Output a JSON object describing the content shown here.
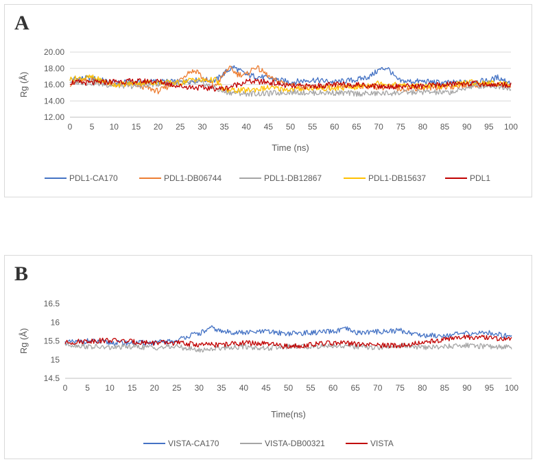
{
  "chart_data": [
    {
      "panel_label": "A",
      "type": "line",
      "xlabel": "Time (ns)",
      "ylabel": "Rg (Å)",
      "xlim": [
        0,
        100
      ],
      "ylim": [
        12,
        20
      ],
      "xticks": [
        "0",
        "5",
        "10",
        "15",
        "20",
        "25",
        "30",
        "35",
        "40",
        "45",
        "50",
        "55",
        "60",
        "65",
        "70",
        "75",
        "80",
        "85",
        "90",
        "95",
        "100"
      ],
      "yticks": [
        "12.00",
        "14.00",
        "16.00",
        "18.00",
        "20.00"
      ],
      "grid": "horizontal",
      "legend_position": "bottom",
      "series": [
        {
          "name": "PDL1-CA170",
          "color": "#4472c4",
          "x": [
            0,
            5,
            10,
            15,
            20,
            25,
            30,
            33,
            35,
            37,
            40,
            45,
            50,
            55,
            60,
            65,
            68,
            70,
            72,
            74,
            75,
            80,
            85,
            90,
            95,
            97,
            100
          ],
          "y": [
            16.7,
            16.8,
            16.2,
            16.3,
            16.4,
            16.3,
            16.6,
            16.5,
            17.4,
            18.2,
            17.2,
            16.8,
            16.3,
            16.6,
            16.3,
            16.6,
            17.0,
            17.8,
            18.1,
            16.7,
            16.4,
            16.4,
            16.2,
            16.3,
            16.5,
            16.9,
            16.2
          ]
        },
        {
          "name": "PDL1-DB06744",
          "color": "#ed7d31",
          "x": [
            0,
            5,
            10,
            15,
            20,
            24,
            27,
            29,
            30,
            33,
            36,
            38,
            40,
            42,
            44,
            46,
            48,
            50,
            55,
            60,
            65,
            70,
            75,
            80,
            85,
            90,
            95,
            100
          ],
          "y": [
            16.1,
            16.6,
            16.0,
            16.0,
            15.2,
            16.2,
            17.6,
            17.7,
            16.8,
            15.8,
            18.1,
            17.3,
            17.2,
            18.2,
            17.5,
            16.6,
            16.3,
            16.0,
            15.6,
            15.8,
            15.9,
            15.7,
            15.5,
            15.6,
            15.7,
            15.9,
            16.0,
            15.9
          ]
        },
        {
          "name": "PDL1-DB12867",
          "color": "#a5a5a5",
          "x": [
            0,
            5,
            10,
            15,
            20,
            25,
            30,
            35,
            40,
            45,
            50,
            55,
            60,
            65,
            70,
            75,
            80,
            85,
            88,
            90,
            95,
            100
          ],
          "y": [
            16.4,
            16.2,
            15.9,
            15.8,
            16.1,
            16.3,
            16.2,
            15.1,
            14.9,
            14.9,
            15.1,
            15.0,
            15.0,
            14.9,
            14.9,
            15.0,
            15.1,
            15.0,
            15.2,
            15.7,
            15.9,
            15.6
          ]
        },
        {
          "name": "PDL1-DB15637",
          "color": "#ffc000",
          "x": [
            0,
            5,
            10,
            15,
            20,
            25,
            28,
            30,
            33,
            35,
            40,
            45,
            50,
            55,
            60,
            65,
            70,
            75,
            80,
            85,
            90,
            95,
            100
          ],
          "y": [
            16.7,
            16.9,
            16.0,
            16.2,
            16.3,
            16.2,
            16.7,
            16.5,
            16.6,
            15.3,
            15.3,
            15.6,
            15.4,
            15.6,
            15.5,
            15.7,
            16.2,
            15.9,
            15.8,
            15.8,
            16.3,
            16.2,
            16.1
          ]
        },
        {
          "name": "PDL1",
          "color": "#c00000",
          "x": [
            0,
            5,
            10,
            15,
            20,
            25,
            30,
            35,
            40,
            45,
            50,
            55,
            60,
            65,
            70,
            75,
            80,
            85,
            90,
            95,
            100
          ],
          "y": [
            16.3,
            16.2,
            16.4,
            16.4,
            16.4,
            15.8,
            15.6,
            15.5,
            16.4,
            16.3,
            15.8,
            15.8,
            16.0,
            16.0,
            15.8,
            15.8,
            15.8,
            16.0,
            16.2,
            16.0,
            16.0
          ]
        }
      ]
    },
    {
      "panel_label": "B",
      "type": "line",
      "xlabel": "Time(ns)",
      "ylabel": "Rg (Å)",
      "xlim": [
        0,
        100
      ],
      "ylim": [
        14.5,
        16.5
      ],
      "xticks": [
        "0",
        "5",
        "10",
        "15",
        "20",
        "25",
        "30",
        "35",
        "40",
        "45",
        "50",
        "55",
        "60",
        "65",
        "70",
        "75",
        "80",
        "85",
        "90",
        "95",
        "100"
      ],
      "yticks": [
        "14.5",
        "15",
        "15.5",
        "16",
        "16.5"
      ],
      "grid": "none",
      "legend_position": "bottom",
      "series": [
        {
          "name": "VISTA-CA170",
          "color": "#4472c4",
          "x": [
            0,
            5,
            10,
            15,
            20,
            25,
            27,
            30,
            33,
            35,
            40,
            45,
            50,
            55,
            60,
            63,
            65,
            70,
            75,
            80,
            85,
            90,
            95,
            100
          ],
          "y": [
            15.45,
            15.5,
            15.45,
            15.45,
            15.45,
            15.5,
            15.62,
            15.7,
            15.85,
            15.75,
            15.72,
            15.75,
            15.7,
            15.72,
            15.75,
            15.82,
            15.72,
            15.75,
            15.78,
            15.65,
            15.65,
            15.7,
            15.72,
            15.62
          ]
        },
        {
          "name": "VISTA-DB00321",
          "color": "#a5a5a5",
          "x": [
            0,
            5,
            10,
            15,
            20,
            25,
            30,
            35,
            40,
            45,
            50,
            55,
            60,
            65,
            70,
            75,
            80,
            85,
            90,
            95,
            100
          ],
          "y": [
            15.42,
            15.35,
            15.32,
            15.35,
            15.32,
            15.35,
            15.25,
            15.32,
            15.35,
            15.3,
            15.35,
            15.35,
            15.38,
            15.35,
            15.32,
            15.38,
            15.32,
            15.35,
            15.38,
            15.35,
            15.35
          ]
        },
        {
          "name": "VISTA",
          "color": "#c00000",
          "x": [
            0,
            5,
            10,
            15,
            20,
            25,
            30,
            35,
            40,
            45,
            50,
            55,
            60,
            65,
            70,
            75,
            80,
            85,
            90,
            95,
            100
          ],
          "y": [
            15.45,
            15.5,
            15.52,
            15.48,
            15.45,
            15.45,
            15.4,
            15.4,
            15.45,
            15.42,
            15.35,
            15.4,
            15.45,
            15.42,
            15.38,
            15.38,
            15.45,
            15.55,
            15.6,
            15.58,
            15.55
          ]
        }
      ]
    }
  ]
}
